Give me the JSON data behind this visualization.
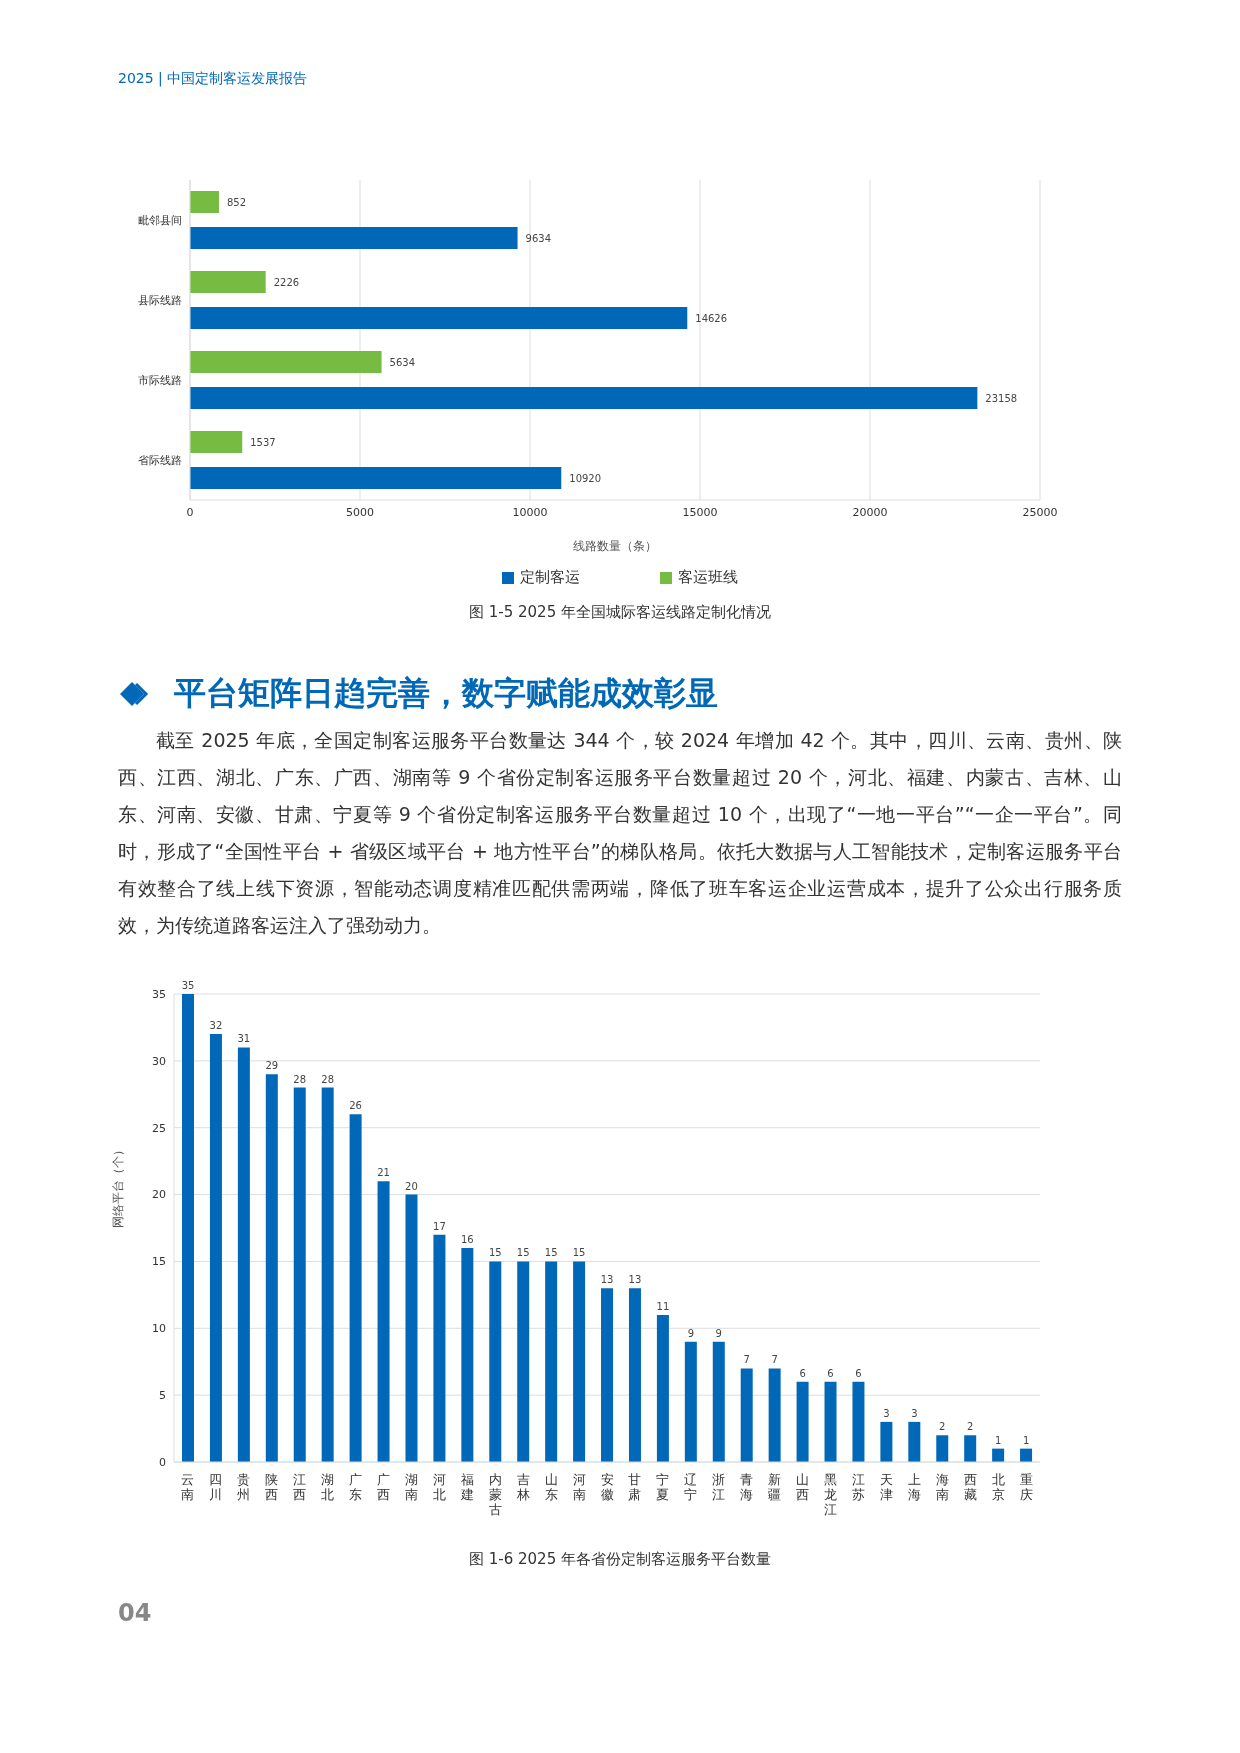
{
  "chart_data": [
    {
      "type": "bar",
      "orientation": "horizontal",
      "title": "图 1-5  2025 年全国城际客运线路定制化情况",
      "xlabel": "线路数量（条）",
      "annotations": [
        "2025 | 中国定制客运发展报告"
      ],
      "categories": [
        "毗邻县间",
        "县际线路",
        "市际线路",
        "省际线路"
      ],
      "series": [
        {
          "name": "客运班线",
          "color": "#76bc43",
          "values": [
            852,
            2226,
            5634,
            1537
          ]
        },
        {
          "name": "定制客运",
          "color": "#0068b7",
          "values": [
            9634,
            14626,
            23158,
            10920
          ]
        }
      ],
      "xlim": [
        0,
        25000
      ],
      "xticks": [
        0,
        5000,
        10000,
        15000,
        20000,
        25000
      ],
      "grid": "x",
      "legend": "bottom",
      "data_labels": true
    },
    {
      "type": "bar",
      "title": "图 1-6  2025 年各省份定制客运服务平台数量",
      "ylabel": "网络平台（个）",
      "annotations": [
        "平台矩阵日趋完善，数字赋能成效彰显",
        "截至 2025 年底，全国定制客运服务平台数量达 344 个，较 2024 年增加 42 个。其中，四川、云南、贵州、陕西、江西、湖北、广东、广西、湖南等 9 个省份定制客运服务平台数量超过 20 个，河北、福建、内蒙古、吉林、山东、河南、安徽、甘肃、宁夏等 9 个省份定制客运服务平台数量超过 10 个，出现了“一地一平台”“一企一平台”。同时，形成了“全国性平台 + 省级区域平台 + 地方性平台”的梯队格局。依托大数据与人工智能技术，定制客运服务平台有效整合了线上线下资源，智能动态调度精准匹配供需两端，降低了班车客运企业运营成本，提升了公众出行服务质效，为传统道路客运注入了强劲动力。",
        "04"
      ],
      "categories": [
        "云南",
        "四川",
        "贵州",
        "陕西",
        "江西",
        "湖北",
        "广东",
        "广西",
        "湖南",
        "河北",
        "福建",
        "内蒙古",
        "吉林",
        "山东",
        "河南",
        "安徽",
        "甘肃",
        "宁夏",
        "辽宁",
        "浙江",
        "青海",
        "新疆",
        "山西",
        "黑龙江",
        "江苏",
        "天津",
        "上海",
        "海南",
        "西藏",
        "北京",
        "重庆"
      ],
      "values": [
        35,
        32,
        31,
        29,
        28,
        28,
        26,
        21,
        20,
        17,
        16,
        15,
        15,
        15,
        15,
        13,
        13,
        11,
        9,
        9,
        7,
        7,
        6,
        6,
        6,
        3,
        3,
        2,
        2,
        1,
        1
      ],
      "color": "#0068b7",
      "ylim": [
        0,
        35
      ],
      "yticks": [
        0,
        5,
        10,
        15,
        20,
        25,
        30,
        35
      ],
      "grid": "y",
      "data_labels": true
    }
  ]
}
